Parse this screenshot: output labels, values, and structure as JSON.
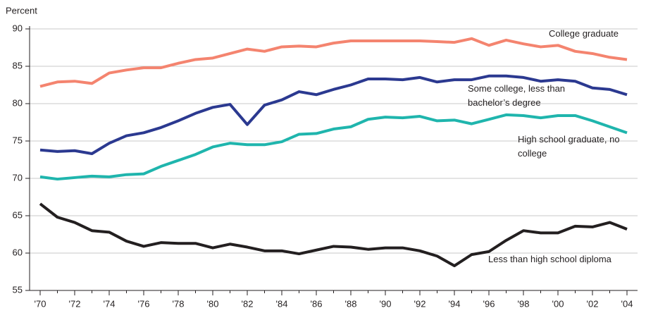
{
  "chart_data": {
    "type": "line",
    "y_label": "Percent",
    "categories": [
      "'70",
      null,
      "'72",
      null,
      "'74",
      null,
      "'76",
      null,
      "'78",
      null,
      "'80",
      null,
      "'82",
      null,
      "'84",
      null,
      "'86",
      null,
      "'88",
      null,
      "'90",
      null,
      "'92",
      null,
      "'94",
      null,
      "'96",
      null,
      "'98",
      null,
      "'00",
      null,
      "'02",
      null,
      "'04"
    ],
    "ylim": [
      55,
      90
    ],
    "yticks": [
      55,
      60,
      65,
      70,
      75,
      80,
      85,
      90
    ],
    "grid": true,
    "series": [
      {
        "name": "College graduate",
        "color": "#f4846f",
        "values": [
          82.3,
          82.9,
          83.0,
          82.7,
          84.1,
          84.5,
          84.8,
          84.8,
          85.4,
          85.9,
          86.1,
          86.7,
          87.3,
          87.0,
          87.6,
          87.7,
          87.6,
          88.1,
          88.4,
          88.4,
          88.4,
          88.4,
          88.4,
          88.3,
          88.2,
          88.7,
          87.8,
          88.5,
          88.0,
          87.6,
          87.8,
          87.0,
          86.7,
          86.2,
          85.9
        ]
      },
      {
        "name": "Some college, less than bachelor’s degree",
        "color": "#2b3990",
        "values": [
          73.8,
          73.6,
          73.7,
          73.3,
          74.7,
          75.7,
          76.1,
          76.8,
          77.7,
          78.7,
          79.5,
          79.9,
          77.2,
          79.8,
          80.5,
          81.6,
          81.2,
          81.9,
          82.5,
          83.3,
          83.3,
          83.2,
          83.5,
          82.9,
          83.2,
          83.2,
          83.7,
          83.7,
          83.5,
          83.0,
          83.2,
          83.0,
          82.1,
          81.9,
          81.2
        ]
      },
      {
        "name": "High school graduate, no college",
        "color": "#1fb5ad",
        "values": [
          70.2,
          69.9,
          70.1,
          70.3,
          70.2,
          70.5,
          70.6,
          71.6,
          72.4,
          73.2,
          74.2,
          74.7,
          74.5,
          74.5,
          74.9,
          75.9,
          76.0,
          76.6,
          76.9,
          77.9,
          78.2,
          78.1,
          78.3,
          77.7,
          77.8,
          77.3,
          77.9,
          78.5,
          78.4,
          78.1,
          78.4,
          78.4,
          77.7,
          76.9,
          76.1
        ]
      },
      {
        "name": "Less than high school diploma",
        "color": "#231f20",
        "values": [
          66.6,
          64.8,
          64.1,
          63.0,
          62.8,
          61.6,
          60.9,
          61.4,
          61.3,
          61.3,
          60.7,
          61.2,
          60.8,
          60.3,
          60.3,
          59.9,
          60.4,
          60.9,
          60.8,
          60.5,
          60.7,
          60.7,
          60.3,
          59.6,
          58.3,
          59.8,
          60.2,
          61.7,
          63.0,
          62.7,
          62.7,
          63.6,
          63.5,
          64.1,
          63.2
        ]
      }
    ]
  }
}
